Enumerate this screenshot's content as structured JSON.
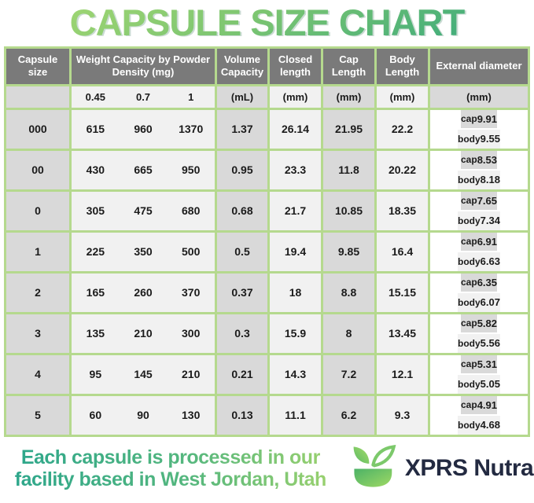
{
  "title": "CAPSULE SIZE CHART",
  "chart_data": {
    "type": "table",
    "title": "CAPSULE SIZE CHART",
    "headers": {
      "capsule_size": "Capsule size",
      "weight": "Weight Capacity by Powder Density (mg)",
      "volume": "Volume Capacity",
      "closed": "Closed length",
      "cap": "Cap Length",
      "body": "Body Length",
      "external": "External diameter"
    },
    "subheader": {
      "densities": [
        "0.45",
        "0.7",
        "1"
      ],
      "volume_unit": "(mL)",
      "closed_unit": "(mm)",
      "cap_unit": "(mm)",
      "body_unit": "(mm)",
      "external_unit": "(mm)"
    },
    "external_labels": {
      "cap": "cap",
      "body": "body"
    },
    "rows": [
      {
        "size": "000",
        "weights": [
          "615",
          "960",
          "1370"
        ],
        "volume": "1.37",
        "closed": "26.14",
        "cap_length": "21.95",
        "body_length": "22.2",
        "external_cap": "9.91",
        "external_body": "9.55"
      },
      {
        "size": "00",
        "weights": [
          "430",
          "665",
          "950"
        ],
        "volume": "0.95",
        "closed": "23.3",
        "cap_length": "11.8",
        "body_length": "20.22",
        "external_cap": "8.53",
        "external_body": "8.18"
      },
      {
        "size": "0",
        "weights": [
          "305",
          "475",
          "680"
        ],
        "volume": "0.68",
        "closed": "21.7",
        "cap_length": "10.85",
        "body_length": "18.35",
        "external_cap": "7.65",
        "external_body": "7.34"
      },
      {
        "size": "1",
        "weights": [
          "225",
          "350",
          "500"
        ],
        "volume": "0.5",
        "closed": "19.4",
        "cap_length": "9.85",
        "body_length": "16.4",
        "external_cap": "6.91",
        "external_body": "6.63"
      },
      {
        "size": "2",
        "weights": [
          "165",
          "260",
          "370"
        ],
        "volume": "0.37",
        "closed": "18",
        "cap_length": "8.8",
        "body_length": "15.15",
        "external_cap": "6.35",
        "external_body": "6.07"
      },
      {
        "size": "3",
        "weights": [
          "135",
          "210",
          "300"
        ],
        "volume": "0.3",
        "closed": "15.9",
        "cap_length": "8",
        "body_length": "13.45",
        "external_cap": "5.82",
        "external_body": "5.56"
      },
      {
        "size": "4",
        "weights": [
          "95",
          "145",
          "210"
        ],
        "volume": "0.21",
        "closed": "14.3",
        "cap_length": "7.2",
        "body_length": "12.1",
        "external_cap": "5.31",
        "external_body": "5.05"
      },
      {
        "size": "5",
        "weights": [
          "60",
          "90",
          "130"
        ],
        "volume": "0.13",
        "closed": "11.1",
        "cap_length": "6.2",
        "body_length": "9.3",
        "external_cap": "4.91",
        "external_body": "4.68"
      }
    ]
  },
  "footer": {
    "note_lines": [
      "Each capsule is processed in our",
      "facility based in West Jordan, Utah"
    ],
    "brand": "XPRS Nutra"
  },
  "colors": {
    "grid_green": "#b5d98e",
    "header_gray": "#7a7a7a",
    "cell_gray": "#d9d9d9",
    "cell_light": "#f1f1f1",
    "title_gradient_start": "#aadb74",
    "title_gradient_end": "#2fa57e",
    "footer_gradient_start": "#2aa58c",
    "footer_gradient_end": "#9fd36d",
    "brand_navy": "#232a41",
    "logo_green": "#6cc06a"
  }
}
